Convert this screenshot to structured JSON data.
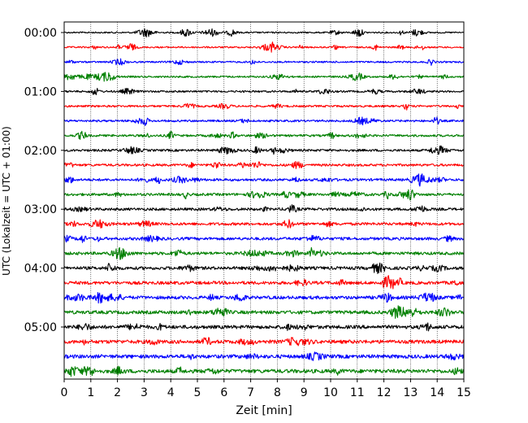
{
  "chart_data": {
    "type": "line",
    "title": "",
    "xlabel": "Zeit  [min]",
    "ylabel": "UTC (Lokalzeit = UTC + 01:00)",
    "xlim": [
      0,
      15
    ],
    "x_ticks": [
      "0",
      "1",
      "2",
      "3",
      "4",
      "5",
      "6",
      "7",
      "8",
      "9",
      "10",
      "11",
      "12",
      "13",
      "14",
      "15"
    ],
    "y_ticks": [
      "00:00",
      "01:00",
      "02:00",
      "03:00",
      "04:00",
      "05:00"
    ],
    "row_interval_minutes": 15,
    "rows": 24,
    "trace_colors": [
      "#000000",
      "#ff0000",
      "#0000ff",
      "#008000"
    ],
    "grid": "vertical dotted",
    "legend": "none"
  }
}
